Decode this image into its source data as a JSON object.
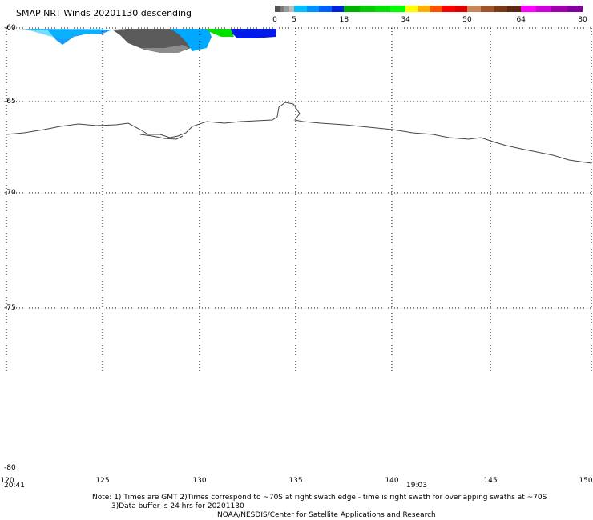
{
  "title": "SMAP NRT Winds  20201130 descending",
  "legend": {
    "segments": [
      {
        "from": 0,
        "to": 5,
        "colors": [
          "#555555",
          "#7a7a7a",
          "#9c9c9c",
          "#bdbdbd"
        ]
      },
      {
        "from": 5,
        "to": 18,
        "colors": [
          "#00bfff",
          "#0090ff",
          "#0060ff",
          "#0020e0"
        ]
      },
      {
        "from": 18,
        "to": 34,
        "colors": [
          "#00b000",
          "#00cc00",
          "#00e000",
          "#00ff00"
        ]
      },
      {
        "from": 34,
        "to": 50,
        "colors": [
          "#ffff00",
          "#ffb000",
          "#ff5000",
          "#ff0000",
          "#e00000"
        ]
      },
      {
        "from": 50,
        "to": 64,
        "colors": [
          "#c8845a",
          "#a0522d",
          "#7a3a1a",
          "#5a2a10"
        ]
      },
      {
        "from": 64,
        "to": 80,
        "colors": [
          "#ff00ff",
          "#d000d8",
          "#a000b0",
          "#8000a0"
        ]
      }
    ],
    "tick_labels": [
      "0",
      "5",
      "18",
      "34",
      "50",
      "64",
      "80"
    ]
  },
  "map": {
    "lat_labels": [
      "-60",
      "-65",
      "-70",
      "-75",
      "-80"
    ],
    "lon_labels": [
      "120",
      "125",
      "130",
      "135",
      "140",
      "145",
      "150"
    ],
    "time_labels": [
      "20:41",
      "19:03"
    ]
  },
  "notes": {
    "line1": "Note: 1) Times are GMT 2)Times correspond to ~70S at right swath edge - time is right swath for overlapping swaths at ~70S",
    "line2": "3)Data buffer is 24 hrs for 20201130",
    "line3": "NOAA/NESDIS/Center for Satellite Applications and Research"
  }
}
